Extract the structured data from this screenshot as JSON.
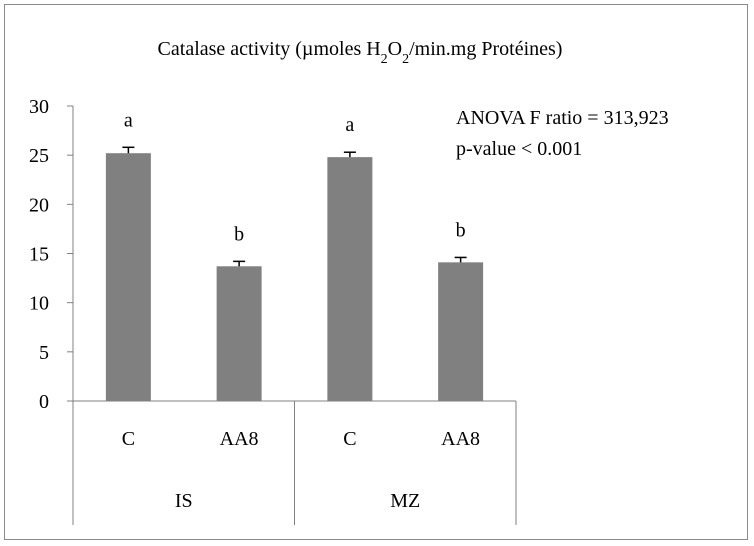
{
  "chart_data": {
    "type": "bar",
    "title_prefix": "Catalase activity (µmoles H",
    "title_sub1": "2",
    "title_mid": "O",
    "title_sub2": "2",
    "title_suffix": "/min.mg Protéines)",
    "groups": [
      {
        "label": "IS",
        "categories": [
          "C",
          "AA8"
        ]
      },
      {
        "label": "MZ",
        "categories": [
          "C",
          "AA8"
        ]
      }
    ],
    "categories": [
      "C",
      "AA8",
      "C",
      "AA8"
    ],
    "values": [
      25.2,
      13.7,
      24.8,
      14.1
    ],
    "errors": [
      0.6,
      0.5,
      0.5,
      0.5
    ],
    "letters": [
      "a",
      "b",
      "a",
      "b"
    ],
    "ylim": [
      0,
      30
    ],
    "yticks": [
      0,
      5,
      10,
      15,
      20,
      25,
      30
    ],
    "bar_color": "#808080",
    "grid": false,
    "annotation_line1": "ANOVA F ratio = 313,923",
    "annotation_line2": "p-value < 0.001"
  }
}
